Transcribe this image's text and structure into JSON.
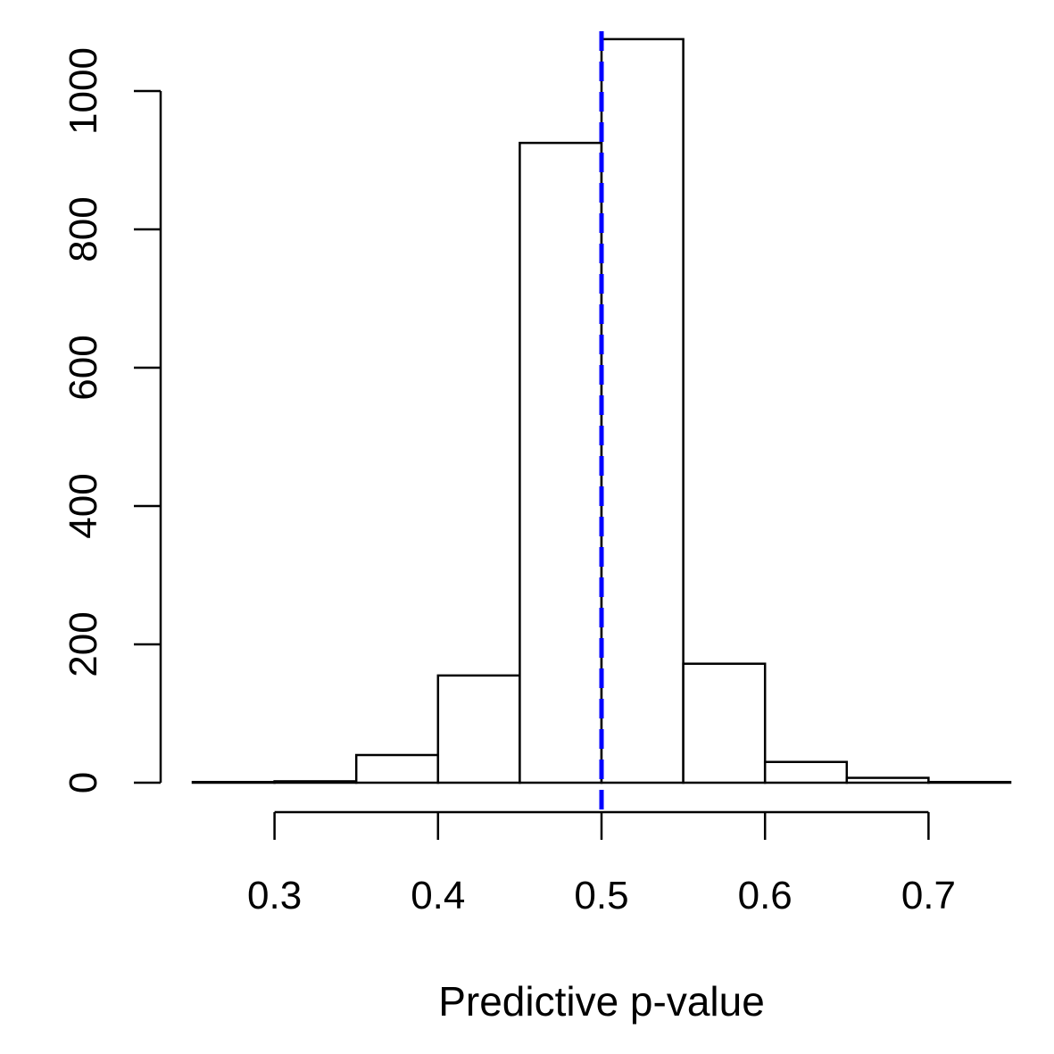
{
  "chart_data": {
    "type": "bar",
    "subtype": "histogram",
    "title": "",
    "xlabel": "Predictive p-value",
    "ylabel": "",
    "bin_edges": [
      0.25,
      0.3,
      0.35,
      0.4,
      0.45,
      0.5,
      0.55,
      0.6,
      0.65,
      0.7,
      0.75
    ],
    "counts": [
      1,
      2,
      40,
      155,
      925,
      1075,
      172,
      30,
      7,
      1
    ],
    "xlim": [
      0.25,
      0.75
    ],
    "ylim": [
      0,
      1075
    ],
    "x_ticks": [
      0.3,
      0.4,
      0.5,
      0.6,
      0.7
    ],
    "x_tick_labels": [
      "0.3",
      "0.4",
      "0.5",
      "0.6",
      "0.7"
    ],
    "y_ticks": [
      0,
      200,
      400,
      600,
      800,
      1000
    ],
    "y_tick_labels": [
      "0",
      "200",
      "400",
      "600",
      "800",
      "1000"
    ],
    "reference_line": {
      "x": 0.5,
      "style": "dashed",
      "color": "#0000ff"
    },
    "bar_fill": "#ffffff",
    "bar_stroke": "#000000",
    "grid": false,
    "legend": "none"
  }
}
